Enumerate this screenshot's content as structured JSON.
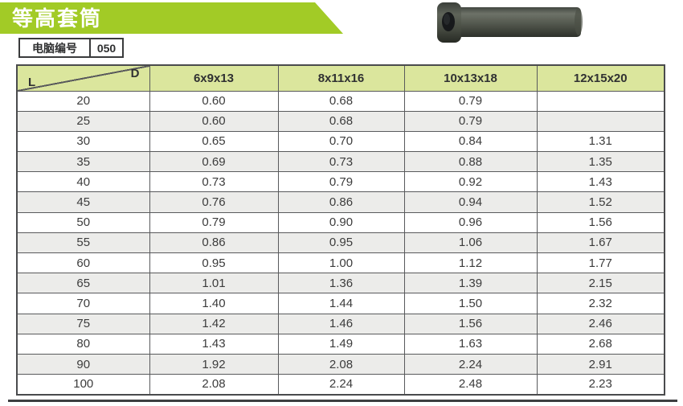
{
  "page": {
    "title": "等高套筒",
    "code_label": "电脑编号",
    "code_value": "050"
  },
  "colors": {
    "banner_green": "#a2cb26",
    "header_bg": "#dbe69d",
    "row_alt": "#ececea",
    "border": "#595a5c",
    "text": "#3c3c3c",
    "footer_rule": "#3d3e40"
  },
  "table": {
    "corner": {
      "col_label": "D",
      "row_label": "L"
    },
    "columns": [
      "6x9x13",
      "8x11x16",
      "10x13x18",
      "12x15x20"
    ],
    "rows": [
      {
        "l": "20",
        "values": [
          "0.60",
          "0.68",
          "0.79",
          ""
        ]
      },
      {
        "l": "25",
        "values": [
          "0.60",
          "0.68",
          "0.79",
          ""
        ]
      },
      {
        "l": "30",
        "values": [
          "0.65",
          "0.70",
          "0.84",
          "1.31"
        ]
      },
      {
        "l": "35",
        "values": [
          "0.69",
          "0.73",
          "0.88",
          "1.35"
        ]
      },
      {
        "l": "40",
        "values": [
          "0.73",
          "0.79",
          "0.92",
          "1.43"
        ]
      },
      {
        "l": "45",
        "values": [
          "0.76",
          "0.86",
          "0.94",
          "1.52"
        ]
      },
      {
        "l": "50",
        "values": [
          "0.79",
          "0.90",
          "0.96",
          "1.56"
        ]
      },
      {
        "l": "55",
        "values": [
          "0.86",
          "0.95",
          "1.06",
          "1.67"
        ]
      },
      {
        "l": "60",
        "values": [
          "0.95",
          "1.00",
          "1.12",
          "1.77"
        ]
      },
      {
        "l": "65",
        "values": [
          "1.01",
          "1.36",
          "1.39",
          "2.15"
        ]
      },
      {
        "l": "70",
        "values": [
          "1.40",
          "1.44",
          "1.50",
          "2.32"
        ]
      },
      {
        "l": "75",
        "values": [
          "1.42",
          "1.46",
          "1.56",
          "2.46"
        ]
      },
      {
        "l": "80",
        "values": [
          "1.43",
          "1.49",
          "1.63",
          "2.68"
        ]
      },
      {
        "l": "90",
        "values": [
          "1.92",
          "2.08",
          "2.24",
          "2.91"
        ]
      },
      {
        "l": "100",
        "values": [
          "2.08",
          "2.24",
          "2.48",
          "2.23"
        ]
      }
    ]
  }
}
